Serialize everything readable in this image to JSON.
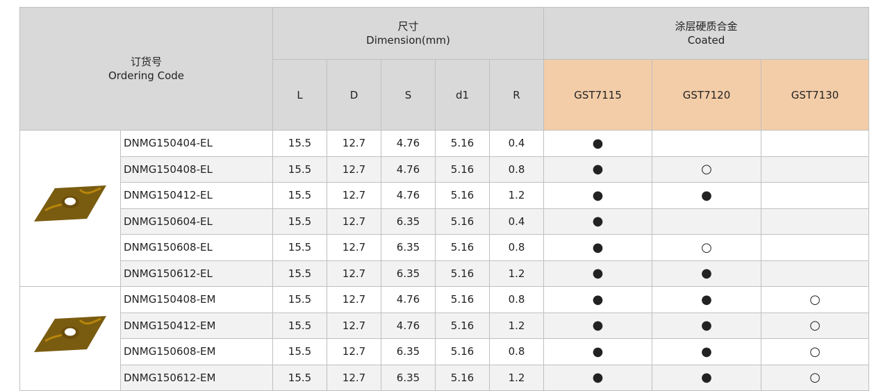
{
  "header": {
    "ordering_code": {
      "zh": "订货号",
      "en": "Ordering Code"
    },
    "dimension": {
      "zh": "尺寸",
      "en": "Dimension(mm)"
    },
    "coated": {
      "zh": "涂层硬质合金",
      "en": "Coated"
    },
    "columns": [
      "L",
      "D",
      "S",
      "d1",
      "R",
      "GST7115",
      "GST7120",
      "GST7130"
    ]
  },
  "groups": [
    {
      "rows": [
        [
          "DNMG150404-EL",
          "15.5",
          "12.7",
          "4.76",
          "5.16",
          "0.4",
          "●",
          null,
          null
        ],
        [
          "DNMG150408-EL",
          "15.5",
          "12.7",
          "4.76",
          "5.16",
          "0.8",
          "●",
          "○",
          null
        ],
        [
          "DNMG150412-EL",
          "15.5",
          "12.7",
          "4.76",
          "5.16",
          "1.2",
          "●",
          "●",
          null
        ],
        [
          "DNMG150604-EL",
          "15.5",
          "12.7",
          "6.35",
          "5.16",
          "0.4",
          "●",
          null,
          null
        ],
        [
          "DNMG150608-EL",
          "15.5",
          "12.7",
          "6.35",
          "5.16",
          "0.8",
          "●",
          "○",
          null
        ],
        [
          "DNMG150612-EL",
          "15.5",
          "12.7",
          "6.35",
          "5.16",
          "1.2",
          "●",
          "●",
          null
        ]
      ]
    },
    {
      "rows": [
        [
          "DNMG150408-EM",
          "15.5",
          "12.7",
          "4.76",
          "5.16",
          "0.8",
          "●",
          "●",
          "○"
        ],
        [
          "DNMG150412-EM",
          "15.5",
          "12.7",
          "4.76",
          "5.16",
          "1.2",
          "●",
          "●",
          "○"
        ],
        [
          "DNMG150608-EM",
          "15.5",
          "12.7",
          "6.35",
          "5.16",
          "0.8",
          "●",
          "●",
          "○"
        ],
        [
          "DNMG150612-EM",
          "15.5",
          "12.7",
          "6.35",
          "5.16",
          "1.2",
          "●",
          "●",
          "○"
        ]
      ]
    }
  ]
}
